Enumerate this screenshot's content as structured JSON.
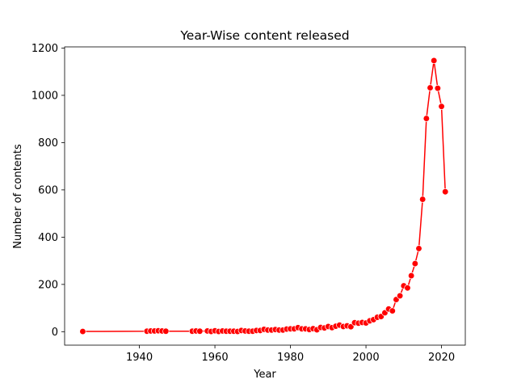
{
  "chart_data": {
    "type": "line",
    "title": "Year-Wise content released",
    "xlabel": "Year",
    "ylabel": "Number of contents",
    "xlim": [
      1920.2,
      2026.3
    ],
    "ylim": [
      -57,
      1205
    ],
    "xticks": [
      1940,
      1960,
      1980,
      2000,
      2020
    ],
    "yticks": [
      0,
      200,
      400,
      600,
      800,
      1000,
      1200
    ],
    "grid": false,
    "legend": "none",
    "series_color": "#ff0000",
    "marker": "circle",
    "x": [
      1925,
      1942,
      1943,
      1944,
      1945,
      1946,
      1947,
      1954,
      1955,
      1956,
      1958,
      1959,
      1960,
      1961,
      1962,
      1963,
      1964,
      1965,
      1966,
      1967,
      1968,
      1969,
      1970,
      1971,
      1972,
      1973,
      1974,
      1975,
      1976,
      1977,
      1978,
      1979,
      1980,
      1981,
      1982,
      1983,
      1984,
      1985,
      1986,
      1987,
      1988,
      1989,
      1990,
      1991,
      1992,
      1993,
      1994,
      1995,
      1996,
      1997,
      1998,
      1999,
      2000,
      2001,
      2002,
      2003,
      2004,
      2005,
      2006,
      2007,
      2008,
      2009,
      2010,
      2011,
      2012,
      2013,
      2014,
      2015,
      2016,
      2017,
      2018,
      2019,
      2020,
      2021
    ],
    "y": [
      1,
      2,
      3,
      3,
      4,
      3,
      2,
      2,
      3,
      2,
      3,
      1,
      4,
      1,
      3,
      2,
      2,
      2,
      1,
      5,
      3,
      2,
      2,
      5,
      5,
      10,
      7,
      7,
      9,
      7,
      7,
      11,
      12,
      12,
      17,
      12,
      12,
      9,
      13,
      8,
      18,
      16,
      22,
      17,
      23,
      28,
      22,
      25,
      21,
      38,
      36,
      39,
      37,
      46,
      51,
      61,
      64,
      80,
      96,
      88,
      136,
      152,
      194,
      185,
      237,
      288,
      352,
      560,
      902,
      1032,
      1147,
      1030,
      953,
      592
    ]
  }
}
